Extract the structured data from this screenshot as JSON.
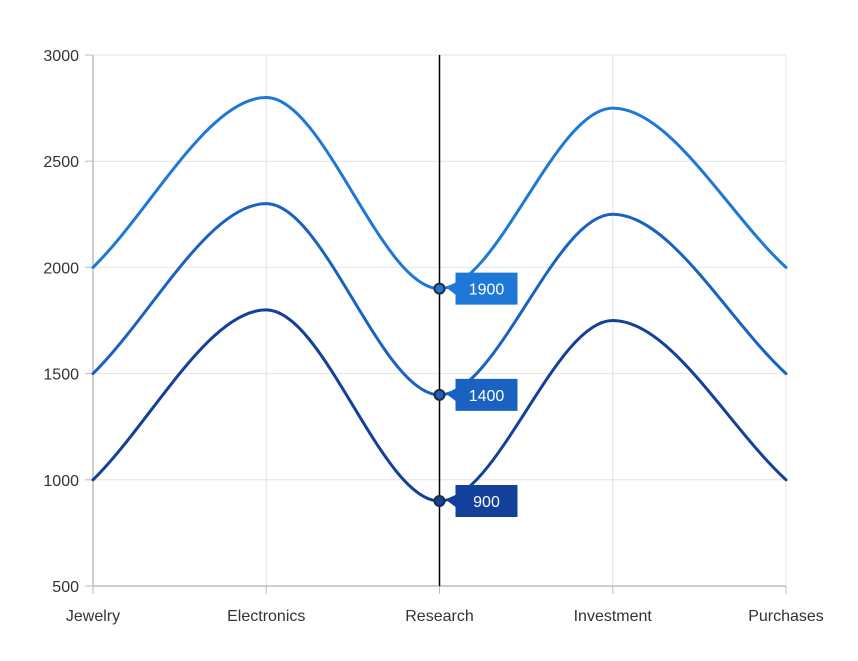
{
  "chart_data": {
    "type": "line",
    "categories": [
      "Jewelry",
      "Electronics",
      "Research",
      "Investment",
      "Purchases"
    ],
    "series": [
      {
        "values": [
          2000,
          2800,
          1900,
          2750,
          2000
        ],
        "color": "#1E78D7"
      },
      {
        "values": [
          1500,
          2300,
          1400,
          2250,
          1500
        ],
        "color": "#1A62C2"
      },
      {
        "values": [
          1000,
          1800,
          900,
          1750,
          1000
        ],
        "color": "#12409A"
      }
    ],
    "ylim": [
      500,
      3000
    ],
    "yticks": [
      500,
      1000,
      1500,
      2000,
      2500,
      3000
    ],
    "grid": true,
    "trackball": {
      "category": "Research",
      "labels": [
        "1900",
        "1400",
        "900"
      ]
    }
  }
}
